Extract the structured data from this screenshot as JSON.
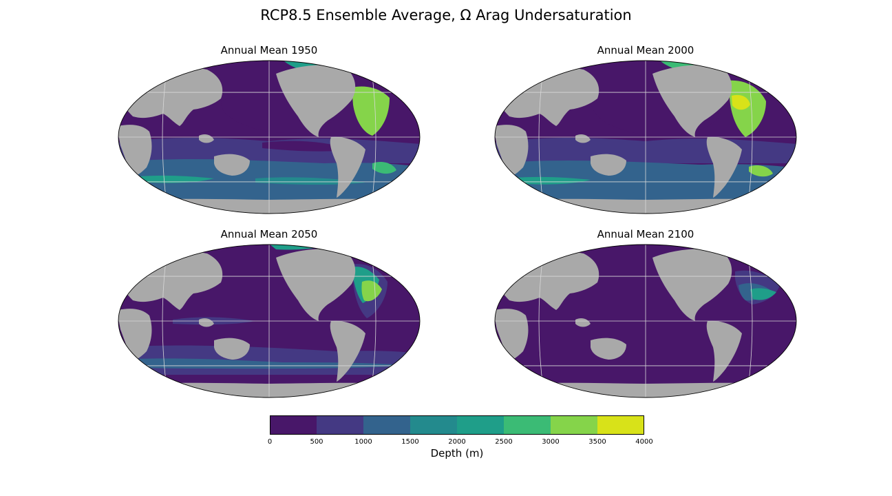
{
  "title": "RCP8.5 Ensemble Average, Ω Arag Undersaturation",
  "chart_data": {
    "type": "heatmap",
    "title": "RCP8.5 Ensemble Average, Ω Arag Undersaturation",
    "variable": "Depth of aragonite undersaturation",
    "projection": "robinson",
    "land_color": "#a9a9a9",
    "panels": [
      {
        "title": "Annual Mean 1950"
      },
      {
        "title": "Annual Mean 2000"
      },
      {
        "title": "Annual Mean 2050"
      },
      {
        "title": "Annual Mean 2100"
      }
    ],
    "colorbar": {
      "label": "Depth (m)",
      "levels": [
        0,
        500,
        1000,
        1500,
        2000,
        2500,
        3000,
        3500,
        4000
      ],
      "tick_labels": [
        "0",
        "500",
        "1000",
        "1500",
        "2000",
        "2500",
        "3000",
        "3500",
        "4000"
      ],
      "colors": [
        "#481769",
        "#443983",
        "#33638d",
        "#238a8d",
        "#1f9e89",
        "#3bbb75",
        "#85d44a",
        "#d8e219"
      ]
    }
  }
}
